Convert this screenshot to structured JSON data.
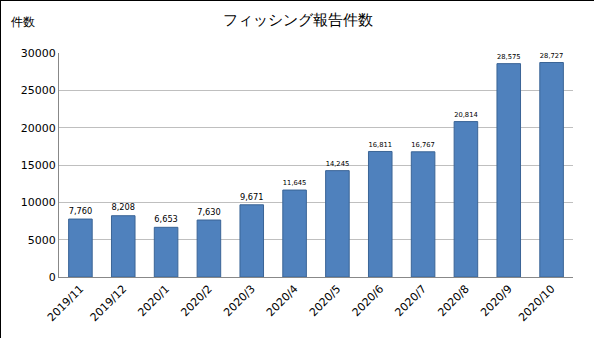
{
  "chart_data": {
    "type": "bar",
    "title": "フィッシング報告件数",
    "y_label": "件数",
    "categories": [
      "2019/11",
      "2019/12",
      "2020/1",
      "2020/2",
      "2020/3",
      "2020/4",
      "2020/5",
      "2020/6",
      "2020/7",
      "2020/8",
      "2020/9",
      "2020/10"
    ],
    "values": [
      7760,
      8208,
      6653,
      7630,
      9671,
      11645,
      14245,
      16811,
      16767,
      20814,
      28575,
      28727
    ],
    "value_labels": [
      "7,760",
      "8,208",
      "6,653",
      "7,630",
      "9,671",
      "11,645",
      "14,245",
      "16,811",
      "16,767",
      "20,814",
      "28,575",
      "28,727"
    ],
    "color": "#4f81bd",
    "ylim": [
      0,
      30000
    ],
    "yticks": [
      0,
      5000,
      10000,
      15000,
      20000,
      25000,
      30000
    ],
    "grid": true,
    "data_labels": true
  }
}
